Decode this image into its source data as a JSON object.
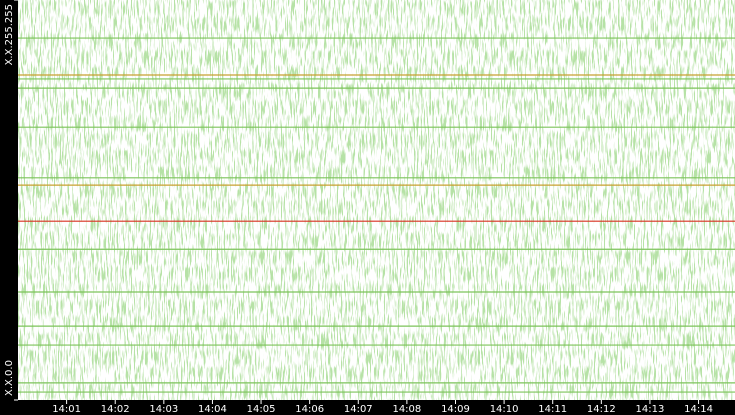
{
  "chart_data": {
    "type": "hlines",
    "xlim": [
      840,
      854.75
    ],
    "xticks": [
      {
        "value": 841,
        "label": "14:01"
      },
      {
        "value": 842,
        "label": "14:02"
      },
      {
        "value": 843,
        "label": "14:03"
      },
      {
        "value": 844,
        "label": "14:04"
      },
      {
        "value": 845,
        "label": "14:05"
      },
      {
        "value": 846,
        "label": "14:06"
      },
      {
        "value": 847,
        "label": "14:07"
      },
      {
        "value": 848,
        "label": "14:08"
      },
      {
        "value": 849,
        "label": "14:09"
      },
      {
        "value": 850,
        "label": "14:10"
      },
      {
        "value": 851,
        "label": "14:11"
      },
      {
        "value": 852,
        "label": "14:12"
      },
      {
        "value": 853,
        "label": "14:13"
      },
      {
        "value": 854,
        "label": "14:14"
      }
    ],
    "ylim": [
      0,
      65535
    ],
    "yticks": [
      {
        "value": 0,
        "label": "X.X.0.0"
      },
      {
        "value": 65535,
        "label": "X.X.255.255"
      }
    ],
    "series": [
      {
        "color": "#7cc35a",
        "values": [
          59300,
          52600,
          51100,
          44700,
          36400,
          24700,
          17700,
          12100,
          9000,
          2800,
          1300
        ]
      },
      {
        "color": "#c8a030",
        "values": [
          53250,
          35200
        ]
      },
      {
        "color": "#d83020",
        "values": [
          29300
        ]
      }
    ]
  }
}
